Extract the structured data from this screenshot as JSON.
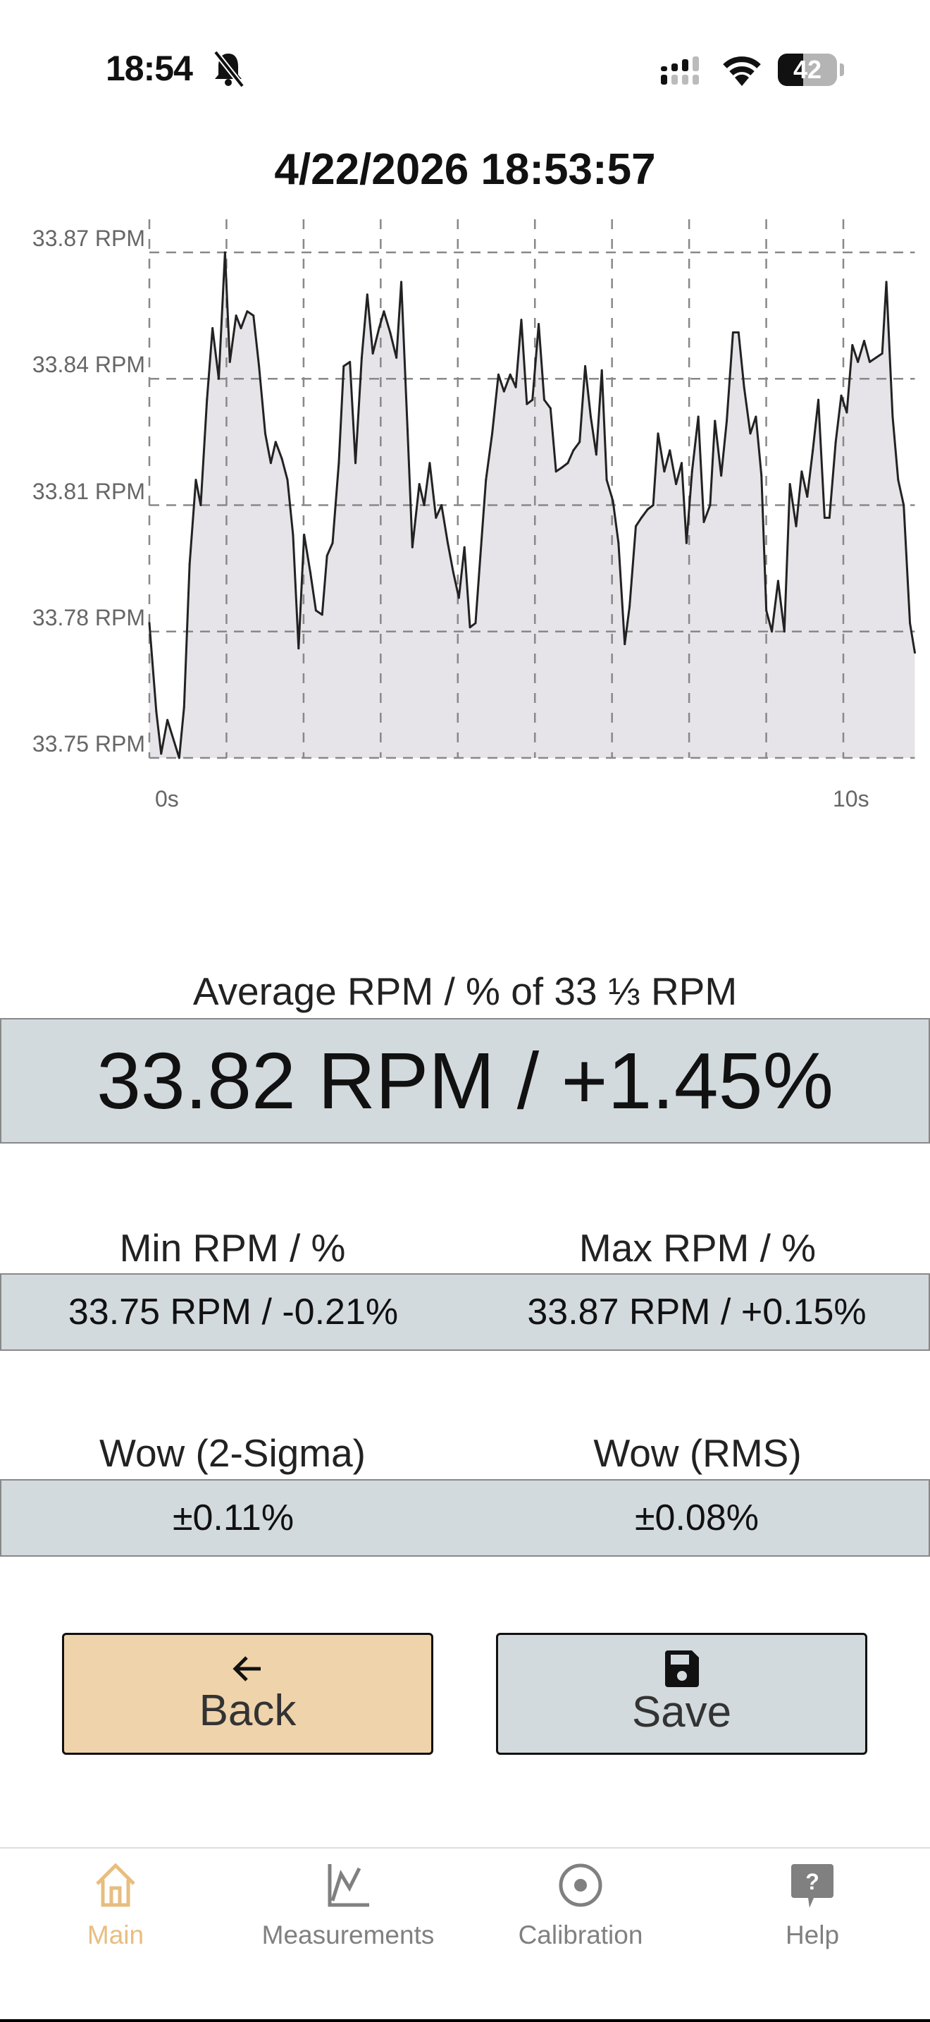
{
  "status_bar": {
    "time": "18:54",
    "battery": "42",
    "icons": [
      "bell-slash-icon",
      "signal-icon",
      "wifi-icon",
      "battery-icon"
    ]
  },
  "title": "4/22/2026 18:53:57",
  "chart_data": {
    "type": "area",
    "title": "",
    "xlabel": "",
    "ylabel": "",
    "x_tick_labels": [
      "0s",
      "10s"
    ],
    "y_tick_labels": [
      "33.87 RPM",
      "33.84 RPM",
      "33.81 RPM",
      "33.78 RPM",
      "33.75 RPM"
    ],
    "y_ticks": [
      33.87,
      33.84,
      33.81,
      33.78,
      33.75
    ],
    "ylim": [
      33.75,
      33.87
    ],
    "xlim": [
      0,
      11.03
    ],
    "grid": true,
    "line_color": "#222222",
    "fill_color": "#e6e4e8",
    "x": [
      0,
      0.1,
      0.17,
      0.26,
      0.43,
      0.5,
      0.58,
      0.67,
      0.74,
      0.83,
      0.91,
      1.0,
      1.09,
      1.16,
      1.25,
      1.32,
      1.41,
      1.5,
      1.58,
      1.67,
      1.75,
      1.82,
      1.91,
      1.99,
      2.07,
      2.15,
      2.23,
      2.32,
      2.4,
      2.49,
      2.56,
      2.64,
      2.73,
      2.8,
      2.89,
      2.97,
      3.06,
      3.14,
      3.22,
      3.31,
      3.38,
      3.47,
      3.56,
      3.63,
      3.72,
      3.79,
      3.89,
      3.96,
      4.04,
      4.13,
      4.21,
      4.3,
      4.38,
      4.46,
      4.54,
      4.62,
      4.7,
      4.77,
      4.85,
      4.94,
      5.03,
      5.11,
      5.2,
      5.28,
      5.36,
      5.44,
      5.52,
      5.61,
      5.69,
      5.78,
      5.86,
      5.95,
      6.03,
      6.11,
      6.2,
      6.28,
      6.36,
      6.44,
      6.52,
      6.59,
      6.68,
      6.76,
      6.85,
      6.92,
      7.01,
      7.09,
      7.18,
      7.26,
      7.33,
      7.42,
      7.5,
      7.59,
      7.67,
      7.74,
      7.82,
      7.91,
      7.99,
      8.08,
      8.15,
      8.24,
      8.32,
      8.41,
      8.49,
      8.57,
      8.66,
      8.74,
      8.82,
      8.89,
      8.97,
      9.06,
      9.15,
      9.23,
      9.32,
      9.4,
      9.48,
      9.56,
      9.64,
      9.73,
      9.8,
      9.89,
      9.97,
      10.05,
      10.13,
      10.21,
      10.3,
      10.38,
      10.47,
      10.56,
      10.62,
      10.71,
      10.79,
      10.87,
      10.96,
      11.03
    ],
    "y": [
      33.782,
      33.761,
      33.751,
      33.759,
      33.75,
      33.762,
      33.796,
      33.816,
      33.81,
      33.835,
      33.852,
      33.84,
      33.87,
      33.844,
      33.855,
      33.852,
      33.856,
      33.855,
      33.843,
      33.827,
      33.82,
      33.825,
      33.821,
      33.816,
      33.803,
      33.776,
      33.803,
      33.794,
      33.785,
      33.784,
      33.798,
      33.801,
      33.82,
      33.843,
      33.844,
      33.82,
      33.845,
      33.86,
      33.846,
      33.852,
      33.856,
      33.851,
      33.845,
      33.863,
      33.828,
      33.8,
      33.815,
      33.81,
      33.82,
      33.807,
      33.81,
      33.801,
      33.794,
      33.788,
      33.8,
      33.781,
      33.782,
      33.798,
      33.816,
      33.827,
      33.841,
      33.837,
      33.841,
      33.838,
      33.854,
      33.834,
      33.835,
      33.853,
      33.835,
      33.833,
      33.818,
      33.819,
      33.82,
      33.823,
      33.825,
      33.843,
      33.831,
      33.822,
      33.842,
      33.816,
      33.811,
      33.801,
      33.777,
      33.786,
      33.805,
      33.807,
      33.809,
      33.81,
      33.827,
      33.818,
      33.823,
      33.815,
      33.82,
      33.801,
      33.818,
      33.831,
      33.806,
      33.81,
      33.83,
      33.817,
      33.83,
      33.851,
      33.851,
      33.838,
      33.827,
      33.831,
      33.817,
      33.785,
      33.78,
      33.792,
      33.78,
      33.815,
      33.805,
      33.818,
      33.812,
      33.823,
      33.835,
      33.807,
      33.807,
      33.825,
      33.836,
      33.832,
      33.848,
      33.844,
      33.849,
      33.844,
      33.845,
      33.846,
      33.863,
      33.831,
      33.816,
      33.81,
      33.782,
      33.775
    ]
  },
  "average": {
    "label": "Average RPM / % of 33 ⅓ RPM",
    "value": "33.82 RPM / +1.45%"
  },
  "min": {
    "label": "Min RPM / %",
    "value": "33.75 RPM / -0.21%"
  },
  "max": {
    "label": "Max RPM / %",
    "value": "33.87 RPM / +0.15%"
  },
  "wow_sigma": {
    "label": "Wow (2-Sigma)",
    "value": "±0.11%"
  },
  "wow_rms": {
    "label": "Wow (RMS)",
    "value": "±0.08%"
  },
  "buttons": {
    "back": "Back",
    "save": "Save"
  },
  "colors": {
    "box_bg": "#d3dade",
    "back_bg": "#efd3ab",
    "accent": "#e8bd80",
    "tab_inactive": "#808080"
  },
  "tabs": [
    {
      "label": "Main",
      "icon": "home-icon",
      "active": true
    },
    {
      "label": "Measurements",
      "icon": "chart-line-icon",
      "active": false
    },
    {
      "label": "Calibration",
      "icon": "target-icon",
      "active": false
    },
    {
      "label": "Help",
      "icon": "help-bubble-icon",
      "active": false
    }
  ]
}
